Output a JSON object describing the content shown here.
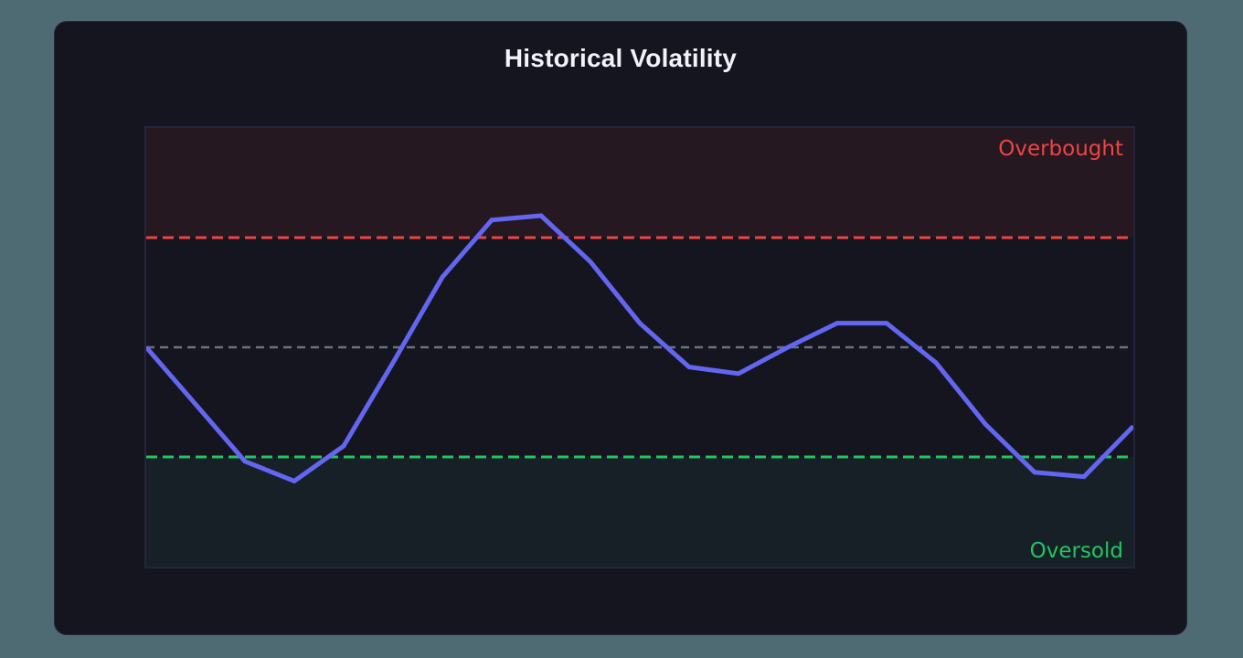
{
  "card": {
    "title": "Historical Volatility"
  },
  "colors": {
    "background": "#4e6a73",
    "card": "#15151f",
    "plot_border": "#25253a",
    "line": "#6366f1",
    "overbought": "#ef4444",
    "oversold": "#22c55e",
    "midline": "#6b7280",
    "overbought_fill": "#251820",
    "oversold_fill": "#172027"
  },
  "labels": {
    "overbought": "Overbought",
    "oversold": "Oversold"
  },
  "chart_data": {
    "type": "line",
    "title": "Historical Volatility",
    "xlabel": "",
    "ylabel": "",
    "ylim": [
      0,
      100
    ],
    "grid": false,
    "legend": "none",
    "x": [
      0,
      1,
      2,
      3,
      4,
      5,
      6,
      7,
      8,
      9,
      10,
      11,
      12,
      13,
      14,
      15,
      16,
      17,
      18,
      19,
      20
    ],
    "series": [
      {
        "name": "Volatility",
        "values": [
          50,
          37,
          24,
          19.5,
          27.5,
          46.5,
          66,
          79,
          80,
          69.5,
          55.5,
          45.5,
          44,
          50,
          55.5,
          55.5,
          46.5,
          32.5,
          21.5,
          20.5,
          32
        ]
      }
    ],
    "thresholds": {
      "overbought": 75,
      "midline": 50,
      "oversold": 25
    },
    "annotations": [
      {
        "text": "Overbought",
        "position": "top-right",
        "color": "#ef4444"
      },
      {
        "text": "Oversold",
        "position": "bottom-right",
        "color": "#22c55e"
      }
    ]
  }
}
